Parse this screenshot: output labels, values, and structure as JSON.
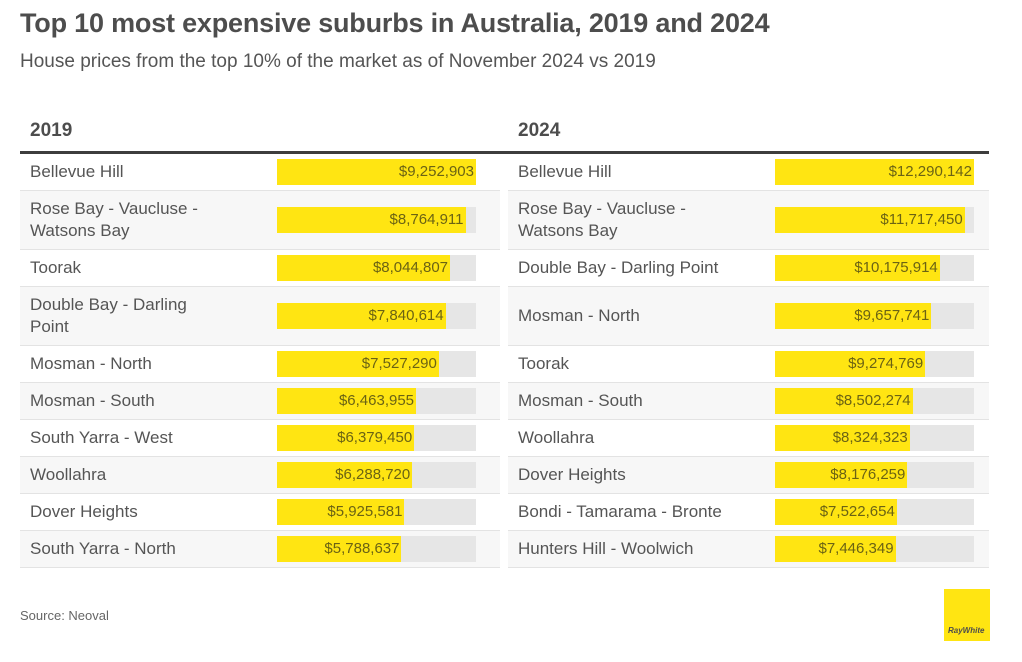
{
  "header": {
    "title": "Top 10 most expensive suburbs in Australia, 2019 and 2024",
    "subtitle": "House prices from the top 10% of the market as of November 2024 vs 2019"
  },
  "footer": {
    "source": "Source: Neoval",
    "logo_text": "RayWhite"
  },
  "colors": {
    "bar": "#ffe512",
    "track": "#e6e6e6",
    "rule": "#3d3d3d"
  },
  "chart_data": [
    {
      "type": "bar",
      "orientation": "horizontal",
      "title": "2019",
      "scale_max": 9252903,
      "categories": [
        "Bellevue Hill",
        "Rose Bay - Vaucluse - Watsons Bay",
        "Toorak",
        "Double Bay - Darling Point",
        "Mosman - North",
        "Mosman - South",
        "South Yarra - West",
        "Woollahra",
        "Dover Heights",
        "South Yarra - North"
      ],
      "values": [
        9252903,
        8764911,
        8044807,
        7840614,
        7527290,
        6463955,
        6379450,
        6288720,
        5925581,
        5788637
      ],
      "labels": [
        "$9,252,903",
        "$8,764,911",
        "$8,044,807",
        "$7,840,614",
        "$7,527,290",
        "$6,463,955",
        "$6,379,450",
        "$6,288,720",
        "$5,925,581",
        "$5,788,637"
      ],
      "wrapped": [
        false,
        true,
        false,
        true,
        false,
        false,
        false,
        false,
        false,
        false
      ]
    },
    {
      "type": "bar",
      "orientation": "horizontal",
      "title": "2024",
      "scale_max": 12290142,
      "categories": [
        "Bellevue Hill",
        "Rose Bay - Vaucluse - Watsons Bay",
        "Double Bay - Darling Point",
        "Mosman - North",
        "Toorak",
        "Mosman - South",
        "Woollahra",
        "Dover Heights",
        "Bondi - Tamarama - Bronte",
        "Hunters Hill - Woolwich"
      ],
      "values": [
        12290142,
        11717450,
        10175914,
        9657741,
        9274769,
        8502274,
        8324323,
        8176259,
        7522654,
        7446349
      ],
      "labels": [
        "$12,290,142",
        "$11,717,450",
        "$10,175,914",
        "$9,657,741",
        "$9,274,769",
        "$8,502,274",
        "$8,324,323",
        "$8,176,259",
        "$7,522,654",
        "$7,446,349"
      ],
      "wrapped": [
        false,
        true,
        false,
        true,
        false,
        false,
        false,
        false,
        false,
        false
      ]
    }
  ]
}
